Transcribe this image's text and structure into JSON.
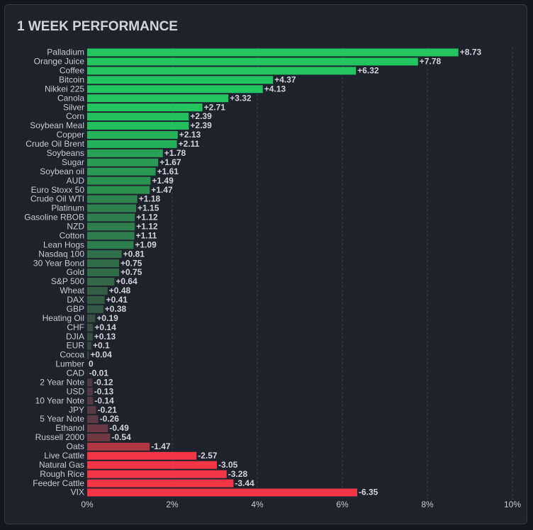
{
  "chart_data": {
    "type": "bar",
    "orientation": "horizontal",
    "title": "1 WEEK PERFORMANCE",
    "categories": [
      "Palladium",
      "Orange Juice",
      "Coffee",
      "Bitcoin",
      "Nikkei 225",
      "Canola",
      "Silver",
      "Corn",
      "Soybean Meal",
      "Copper",
      "Crude Oil Brent",
      "Soybeans",
      "Sugar",
      "Soybean oil",
      "AUD",
      "Euro Stoxx 50",
      "Crude Oil WTI",
      "Platinum",
      "Gasoline RBOB",
      "NZD",
      "Cotton",
      "Lean Hogs",
      "Nasdaq 100",
      "30 Year Bond",
      "Gold",
      "S&P 500",
      "Wheat",
      "DAX",
      "GBP",
      "Heating Oil",
      "CHF",
      "DJIA",
      "EUR",
      "Cocoa",
      "Lumber",
      "CAD",
      "2 Year Note",
      "USD",
      "10 Year Note",
      "JPY",
      "5 Year Note",
      "Ethanol",
      "Russell 2000",
      "Oats",
      "Live Cattle",
      "Natural Gas",
      "Rough Rice",
      "Feeder Cattle",
      "VIX"
    ],
    "values": [
      8.73,
      7.78,
      6.32,
      4.37,
      4.13,
      3.32,
      2.71,
      2.39,
      2.39,
      2.13,
      2.11,
      1.78,
      1.67,
      1.61,
      1.49,
      1.47,
      1.18,
      1.15,
      1.12,
      1.12,
      1.11,
      1.09,
      0.81,
      0.75,
      0.75,
      0.64,
      0.48,
      0.41,
      0.38,
      0.19,
      0.14,
      0.13,
      0.1,
      0.04,
      0,
      -0.01,
      -0.12,
      -0.13,
      -0.14,
      -0.21,
      -0.26,
      -0.49,
      -0.54,
      -1.47,
      -2.57,
      -3.05,
      -3.28,
      -3.44,
      -6.35
    ],
    "value_labels": [
      "+8.73",
      "+7.78",
      "+6.32",
      "+4.37",
      "+4.13",
      "+3.32",
      "+2.71",
      "+2.39",
      "+2.39",
      "+2.13",
      "+2.11",
      "+1.78",
      "+1.67",
      "+1.61",
      "+1.49",
      "+1.47",
      "+1.18",
      "+1.15",
      "+1.12",
      "+1.12",
      "+1.11",
      "+1.09",
      "+0.81",
      "+0.75",
      "+0.75",
      "+0.64",
      "+0.48",
      "+0.41",
      "+0.38",
      "+0.19",
      "+0.14",
      "+0.13",
      "+0.1",
      "+0.04",
      "0",
      "-0.01",
      "-0.12",
      "-0.13",
      "-0.14",
      "-0.21",
      "-0.26",
      "-0.49",
      "-0.54",
      "-1.47",
      "-2.57",
      "-3.05",
      "-3.28",
      "-3.44",
      "-6.35"
    ],
    "xlim": [
      0,
      10
    ],
    "xticks": [
      {
        "value": 0,
        "label": "0%"
      },
      {
        "value": 2,
        "label": "2%"
      },
      {
        "value": 4,
        "label": "4%"
      },
      {
        "value": 6,
        "label": "6%"
      },
      {
        "value": 8,
        "label": "8%"
      },
      {
        "value": 10,
        "label": "10%"
      }
    ],
    "grid": true,
    "color_scale": {
      "positive": "#22c55e",
      "negative": "#f23645",
      "neutral_positive": "#37463f",
      "neutral_negative": "#4a3a42"
    }
  }
}
